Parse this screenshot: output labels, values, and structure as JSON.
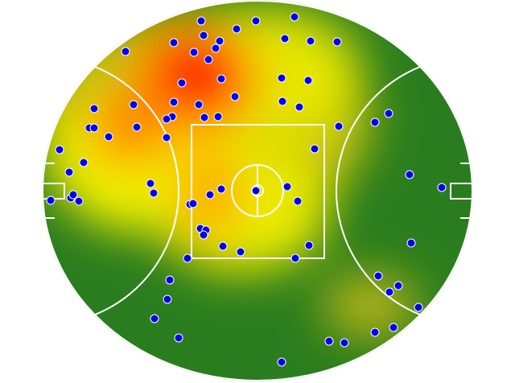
{
  "chart_data": {
    "type": "scatter",
    "color": "#0000ee",
    "xlim": [
      0,
      536
    ],
    "ylim": [
      0,
      474
    ],
    "x": [
      198,
      266,
      314,
      242,
      201,
      221,
      164,
      216,
      189,
      207,
      104,
      302,
      334,
      367,
      223,
      174,
      298,
      331,
      240,
      164,
      195,
      114,
      65,
      299,
      320,
      162,
      155,
      202,
      219,
      59,
      65,
      118,
      369,
      414,
      431,
      155,
      83,
      22,
      339,
      52,
      34,
      457,
      135,
      139,
      266,
      305,
      223,
      209,
      184,
      188,
      318,
      497,
      11,
      36,
      39,
      46,
      197,
      204,
      201,
      225,
      247,
      332,
      459,
      181,
      315,
      159,
      418,
      443,
      432,
      156,
      468,
      140,
      170,
      357,
      376,
      414,
      437,
      298
    ],
    "values": [
      448,
      448,
      453,
      438,
      430,
      423,
      421,
      414,
      409,
      400,
      410,
      426,
      423,
      422,
      376,
      371,
      377,
      374,
      354,
      347,
      344,
      344,
      339,
      348,
      341,
      329,
      326,
      328,
      329,
      315,
      315,
      316,
      317,
      322,
      333,
      303,
      304,
      288,
      289,
      272,
      260,
      257,
      246,
      234,
      237,
      242,
      239,
      232,
      220,
      221,
      224,
      241,
      225,
      228,
      232,
      224,
      190,
      188,
      182,
      168,
      161,
      169,
      172,
      153,
      153,
      126,
      131,
      119,
      111,
      102,
      92,
      78,
      54,
      50,
      48,
      61,
      67,
      24
    ]
  }
}
